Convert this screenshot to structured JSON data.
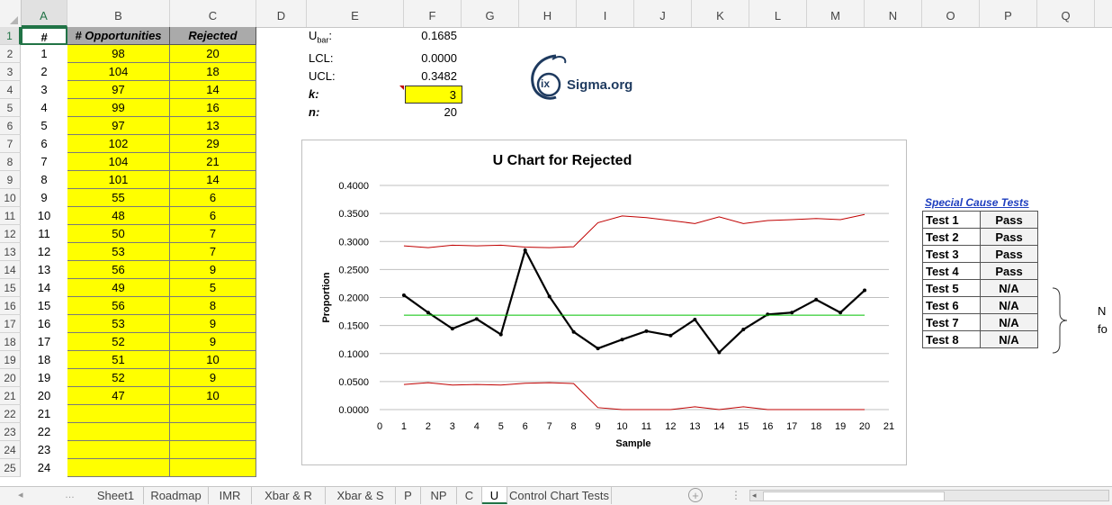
{
  "columns": [
    "A",
    "B",
    "C",
    "D",
    "E",
    "F",
    "G",
    "H",
    "I",
    "J",
    "K",
    "L",
    "M",
    "N",
    "O",
    "P",
    "Q"
  ],
  "rows": [
    "1",
    "2",
    "3",
    "4",
    "5",
    "6",
    "7",
    "8",
    "9",
    "10",
    "11",
    "12",
    "13",
    "14",
    "15",
    "16",
    "17",
    "18",
    "19",
    "20",
    "21",
    "22",
    "23",
    "24",
    "25"
  ],
  "headers": {
    "a": "#",
    "b": "# Opportunities",
    "c": "Rejected"
  },
  "samples": [
    {
      "n": "1",
      "opp": "98",
      "rej": "20"
    },
    {
      "n": "2",
      "opp": "104",
      "rej": "18"
    },
    {
      "n": "3",
      "opp": "97",
      "rej": "14"
    },
    {
      "n": "4",
      "opp": "99",
      "rej": "16"
    },
    {
      "n": "5",
      "opp": "97",
      "rej": "13"
    },
    {
      "n": "6",
      "opp": "102",
      "rej": "29"
    },
    {
      "n": "7",
      "opp": "104",
      "rej": "21"
    },
    {
      "n": "8",
      "opp": "101",
      "rej": "14"
    },
    {
      "n": "9",
      "opp": "55",
      "rej": "6"
    },
    {
      "n": "10",
      "opp": "48",
      "rej": "6"
    },
    {
      "n": "11",
      "opp": "50",
      "rej": "7"
    },
    {
      "n": "12",
      "opp": "53",
      "rej": "7"
    },
    {
      "n": "13",
      "opp": "56",
      "rej": "9"
    },
    {
      "n": "14",
      "opp": "49",
      "rej": "5"
    },
    {
      "n": "15",
      "opp": "56",
      "rej": "8"
    },
    {
      "n": "16",
      "opp": "53",
      "rej": "9"
    },
    {
      "n": "17",
      "opp": "52",
      "rej": "9"
    },
    {
      "n": "18",
      "opp": "51",
      "rej": "10"
    },
    {
      "n": "19",
      "opp": "52",
      "rej": "9"
    },
    {
      "n": "20",
      "opp": "47",
      "rej": "10"
    },
    {
      "n": "21",
      "opp": "",
      "rej": ""
    },
    {
      "n": "22",
      "opp": "",
      "rej": ""
    },
    {
      "n": "23",
      "opp": "",
      "rej": ""
    },
    {
      "n": "24",
      "opp": "",
      "rej": ""
    }
  ],
  "params": {
    "ubar_label": "U",
    "ubar_sub": "bar",
    "ubar_colon": ":",
    "ubar_value": "0.1685",
    "lcl_label": "LCL:",
    "lcl_value": "0.0000",
    "ucl_label": "UCL:",
    "ucl_value": "0.3482",
    "k_label": "k:",
    "k_value": "3",
    "n_label": "n:",
    "n_value": "20"
  },
  "logo": {
    "glyph": "ix",
    "text": "Sigma.org"
  },
  "special_cause": {
    "title": "Special Cause Tests",
    "tests": [
      {
        "name": "Test 1",
        "result": "Pass"
      },
      {
        "name": "Test 2",
        "result": "Pass"
      },
      {
        "name": "Test 3",
        "result": "Pass"
      },
      {
        "name": "Test 4",
        "result": "Pass"
      },
      {
        "name": "Test 5",
        "result": "N/A"
      },
      {
        "name": "Test 6",
        "result": "N/A"
      },
      {
        "name": "Test 7",
        "result": "N/A"
      },
      {
        "name": "Test 8",
        "result": "N/A"
      }
    ],
    "note_line1": "N",
    "note_line2": "fo"
  },
  "tabs": [
    "Sheet1",
    "Roadmap",
    "IMR",
    "Xbar & R",
    "Xbar & S",
    "P",
    "NP",
    "C",
    "U",
    "Control Chart Tests"
  ],
  "active_tab": "U",
  "colors": {
    "yellow": "#ffff00",
    "header_gray": "#aaaaaa",
    "data_line": "#000000",
    "limit_line": "#c00000",
    "center_line": "#00c000",
    "accent": "#217346"
  },
  "chart_data": {
    "type": "line",
    "title": "U Chart for Rejected",
    "xlabel": "Sample",
    "ylabel": "Proportion",
    "xlim": [
      0,
      21
    ],
    "ylim": [
      0,
      0.4
    ],
    "yticks": [
      "0.0000",
      "0.0500",
      "0.1000",
      "0.1500",
      "0.2000",
      "0.2500",
      "0.3000",
      "0.3500",
      "0.4000"
    ],
    "xticks": [
      "0",
      "1",
      "2",
      "3",
      "4",
      "5",
      "6",
      "7",
      "8",
      "9",
      "10",
      "11",
      "12",
      "13",
      "14",
      "15",
      "16",
      "17",
      "18",
      "19",
      "20",
      "21"
    ],
    "x": [
      1,
      2,
      3,
      4,
      5,
      6,
      7,
      8,
      9,
      10,
      11,
      12,
      13,
      14,
      15,
      16,
      17,
      18,
      19,
      20
    ],
    "series": [
      {
        "values": [
          0.2041,
          0.1731,
          0.1443,
          0.1616,
          0.134,
          0.2843,
          0.2019,
          0.1386,
          0.1091,
          0.125,
          0.14,
          0.1321,
          0.1607,
          0.102,
          0.1429,
          0.1698,
          0.1731,
          0.1961,
          0.1731,
          0.2128
        ],
        "color": "#000000"
      },
      {
        "values": [
          0.2922,
          0.289,
          0.2933,
          0.2922,
          0.2933,
          0.29,
          0.289,
          0.2906,
          0.3335,
          0.3456,
          0.3425,
          0.3373,
          0.332,
          0.344,
          0.332,
          0.3373,
          0.339,
          0.341,
          0.339,
          0.3482
        ],
        "color": "#c00000"
      },
      {
        "values": [
          0.0448,
          0.048,
          0.0437,
          0.0448,
          0.0437,
          0.047,
          0.048,
          0.0464,
          0.0035,
          0.0,
          0.0,
          0.0,
          0.005,
          0.0,
          0.005,
          0.0,
          0.0,
          0.0,
          0.0,
          0.0
        ],
        "color": "#c00000"
      },
      {
        "values": [
          0.1685,
          0.1685,
          0.1685,
          0.1685,
          0.1685,
          0.1685,
          0.1685,
          0.1685,
          0.1685,
          0.1685,
          0.1685,
          0.1685,
          0.1685,
          0.1685,
          0.1685,
          0.1685,
          0.1685,
          0.1685,
          0.1685,
          0.1685
        ],
        "color": "#00c000"
      }
    ],
    "grid": true
  }
}
